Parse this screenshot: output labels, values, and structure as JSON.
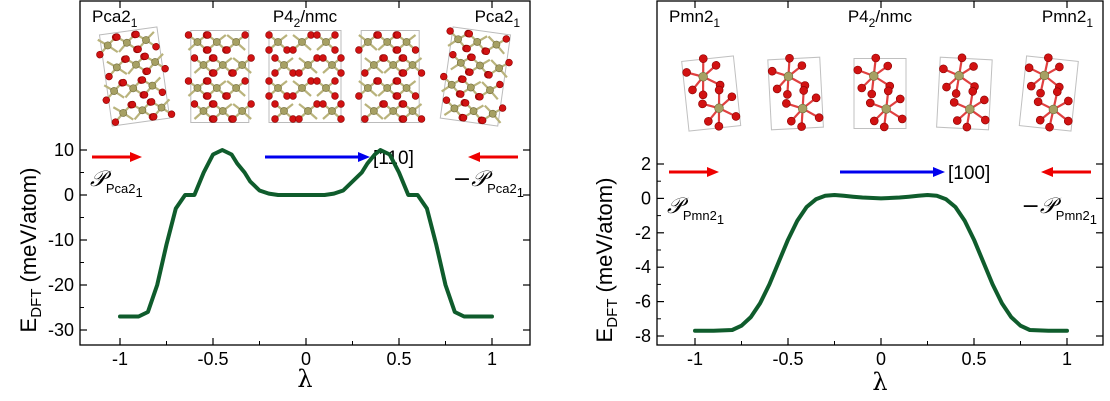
{
  "colors": {
    "curve": "#0f5c2c",
    "red_arrow": "#ee0000",
    "blue_arrow": "#0000ee",
    "oxygen_atom": "#d11212",
    "cation_atom": "#a6a063",
    "bond_o": "#e04040",
    "bond_m": "#b9b37c"
  },
  "chart_data": [
    {
      "type": "line",
      "xlabel": "λ",
      "ylabel": "E",
      "ylabel_sub": "DFT",
      "ylabel_unit": "(meV/atom)",
      "xlim": [
        -1.2,
        1.2
      ],
      "ylim": [
        -30,
        15
      ],
      "xticks": [
        -1,
        -0.5,
        0,
        0.5,
        1
      ],
      "xtick_labels": [
        "-1",
        "-0.5",
        "0",
        "0.5",
        "1"
      ],
      "yticks": [
        -30,
        -20,
        -10,
        0,
        10
      ],
      "ytick_labels": [
        "-30",
        "-20",
        "-10",
        "0",
        "10"
      ],
      "phase_labels": [
        {
          "base": "Pca2",
          "sub": "1",
          "anchor": "left"
        },
        {
          "base": "P4",
          "sub": "2",
          "rest": "/nmc",
          "anchor": "middle"
        },
        {
          "base": "Pca2",
          "sub": "1",
          "anchor": "right"
        }
      ],
      "direction_label": "[110]",
      "pol_left": {
        "prefix": "",
        "symbol": "𝒫",
        "sub": "Pca2",
        "subsub": "1"
      },
      "pol_right": {
        "prefix": "−",
        "symbol": "𝒫",
        "sub": "Pca2",
        "subsub": "1"
      },
      "series": [
        {
          "x": [
            -1.0,
            -0.9,
            -0.85,
            -0.8,
            -0.75,
            -0.7,
            -0.65,
            -0.6,
            -0.55,
            -0.5,
            -0.45,
            -0.4,
            -0.37,
            -0.33,
            -0.3,
            -0.25,
            -0.2,
            -0.15,
            -0.1,
            -0.05,
            0.0,
            0.05,
            0.1,
            0.15,
            0.2,
            0.25,
            0.3,
            0.33,
            0.37,
            0.4,
            0.45,
            0.5,
            0.55,
            0.6,
            0.65,
            0.7,
            0.75,
            0.8,
            0.85,
            0.9,
            1.0
          ],
          "y": [
            -27,
            -27,
            -26,
            -20,
            -11,
            -3,
            0,
            0,
            5,
            9,
            10,
            9,
            7,
            5,
            3,
            1,
            0.3,
            0,
            0,
            0,
            0,
            0,
            0,
            0.3,
            1,
            3,
            5,
            7,
            9,
            10,
            9,
            5,
            0,
            0,
            -3,
            -11,
            -20,
            -26,
            -27,
            -27,
            -27
          ]
        }
      ]
    },
    {
      "type": "line",
      "xlabel": "λ",
      "ylabel": "E",
      "ylabel_sub": "DFT",
      "ylabel_unit": "(meV/atom)",
      "xlim": [
        -1.2,
        1.2
      ],
      "ylim": [
        -8,
        3
      ],
      "xticks": [
        -1,
        -0.5,
        0,
        0.5,
        1
      ],
      "xtick_labels": [
        "-1",
        "-0.5",
        "0",
        "0.5",
        "1"
      ],
      "yticks": [
        -8,
        -6,
        -4,
        -2,
        0,
        2
      ],
      "ytick_labels": [
        "-8",
        "-6",
        "-4",
        "-2",
        "0",
        "2"
      ],
      "phase_labels": [
        {
          "base": "Pmn2",
          "sub": "1",
          "anchor": "left"
        },
        {
          "base": "P4",
          "sub": "2",
          "rest": "/nmc",
          "anchor": "middle"
        },
        {
          "base": "Pmn2",
          "sub": "1",
          "anchor": "right"
        }
      ],
      "direction_label": "[100]",
      "pol_left": {
        "prefix": "",
        "symbol": "𝒫",
        "sub": "Pmn2",
        "subsub": "1"
      },
      "pol_right": {
        "prefix": "−",
        "symbol": "𝒫",
        "sub": "Pmn2",
        "subsub": "1"
      },
      "series": [
        {
          "x": [
            -1.0,
            -0.9,
            -0.8,
            -0.75,
            -0.7,
            -0.65,
            -0.6,
            -0.55,
            -0.5,
            -0.45,
            -0.4,
            -0.35,
            -0.3,
            -0.25,
            -0.2,
            -0.15,
            -0.1,
            0.0,
            0.1,
            0.15,
            0.2,
            0.25,
            0.3,
            0.35,
            0.4,
            0.45,
            0.5,
            0.55,
            0.6,
            0.65,
            0.7,
            0.75,
            0.8,
            0.9,
            1.0
          ],
          "y": [
            -7.7,
            -7.7,
            -7.65,
            -7.4,
            -6.9,
            -6.1,
            -5.0,
            -3.7,
            -2.4,
            -1.3,
            -0.5,
            -0.05,
            0.15,
            0.2,
            0.15,
            0.1,
            0.05,
            0.0,
            0.05,
            0.1,
            0.15,
            0.2,
            0.15,
            -0.05,
            -0.5,
            -1.3,
            -2.4,
            -3.7,
            -5.0,
            -6.1,
            -6.9,
            -7.4,
            -7.65,
            -7.7,
            -7.7
          ]
        }
      ]
    }
  ]
}
